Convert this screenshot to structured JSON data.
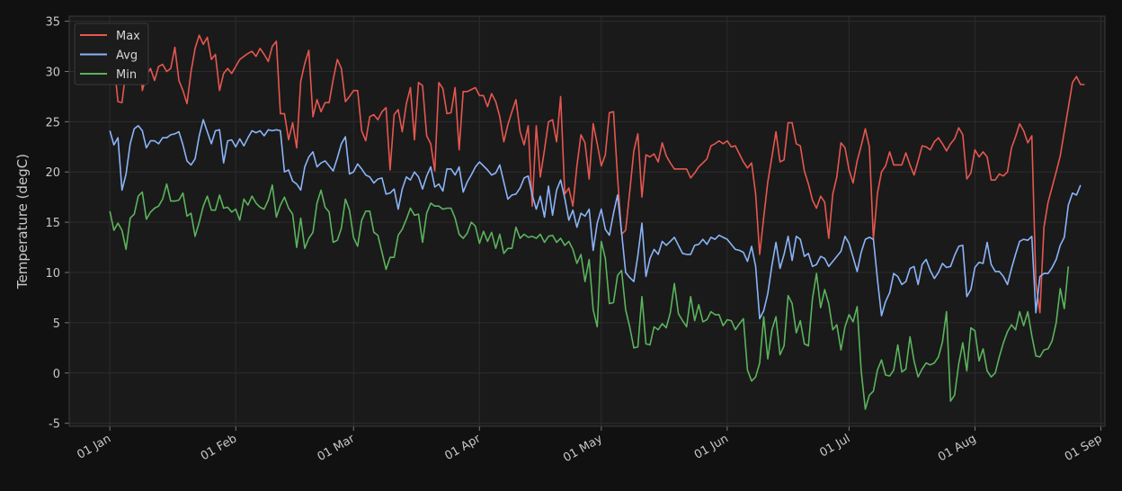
{
  "chart_data": {
    "type": "line",
    "ylabel": "Temperature (degC)",
    "ylim": [
      -5.3,
      35.5
    ],
    "xlim": [
      "2023-12-22",
      "2024-09-02"
    ],
    "y_ticks": [
      -5,
      0,
      5,
      10,
      15,
      20,
      25,
      30,
      35
    ],
    "x_ticks": [
      {
        "date": "2024-01-01",
        "label": "01 Jan"
      },
      {
        "date": "2024-02-01",
        "label": "01 Feb"
      },
      {
        "date": "2024-03-01",
        "label": "01 Mar"
      },
      {
        "date": "2024-04-01",
        "label": "01 Apr"
      },
      {
        "date": "2024-05-01",
        "label": "01 May"
      },
      {
        "date": "2024-06-01",
        "label": "01 Jun"
      },
      {
        "date": "2024-07-01",
        "label": "01 Jul"
      },
      {
        "date": "2024-08-01",
        "label": "01 Aug"
      },
      {
        "date": "2024-09-01",
        "label": "01 Sep"
      }
    ],
    "grid": true,
    "legend_position": "top-left",
    "start_date": "2024-01-01",
    "series": [
      {
        "name": "Max",
        "color": "#e5574f",
        "values": [
          30.2,
          31.0,
          27.0,
          26.9,
          30.2,
          32.5,
          32.0,
          34.1,
          28.1,
          29.6,
          30.3,
          29.1,
          30.5,
          30.7,
          30.0,
          30.3,
          32.4,
          29.1,
          28.1,
          26.8,
          30.0,
          32.3,
          33.6,
          32.7,
          33.4,
          31.2,
          31.7,
          28.1,
          29.8,
          30.3,
          29.8,
          30.5,
          31.2,
          31.5,
          31.8,
          32.0,
          31.5,
          32.3,
          31.7,
          31.0,
          32.5,
          33.0,
          25.8,
          25.8,
          23.2,
          24.9,
          22.4,
          29.0,
          30.8,
          32.1,
          25.5,
          27.2,
          26.0,
          26.9,
          26.9,
          29.2,
          31.2,
          30.3,
          27.0,
          27.5,
          28.1,
          28.1,
          24.1,
          23.1,
          25.5,
          25.7,
          25.2,
          26.0,
          26.4,
          20.2,
          25.7,
          26.2,
          24.0,
          26.8,
          28.4,
          23.2,
          28.9,
          28.6,
          23.6,
          22.8,
          20.1,
          28.9,
          28.3,
          25.8,
          25.9,
          28.4,
          22.2,
          28.0,
          28.0,
          28.2,
          28.4,
          27.6,
          27.6,
          26.5,
          27.8,
          27.0,
          25.5,
          23.0,
          24.7,
          26.0,
          27.2,
          24.0,
          22.7,
          24.6,
          16.6,
          24.6,
          19.5,
          22.2,
          25.0,
          25.2,
          23.0,
          27.5,
          17.8,
          18.4,
          16.6,
          20.6,
          23.7,
          22.9,
          19.3,
          24.8,
          22.8,
          20.6,
          21.7,
          25.9,
          26.0,
          19.5,
          13.8,
          14.2,
          18.0,
          22.1,
          23.8,
          17.5,
          21.7,
          21.5,
          21.8,
          21.0,
          22.9,
          21.6,
          20.9,
          20.3,
          20.3,
          20.3,
          20.3,
          19.4,
          19.9,
          20.5,
          20.9,
          21.3,
          22.6,
          22.8,
          23.1,
          22.8,
          23.1,
          22.5,
          22.6,
          21.8,
          21.0,
          20.4,
          20.9,
          17.8,
          11.8,
          15.5,
          19.0,
          21.5,
          24.0,
          21.0,
          21.2,
          24.9,
          24.9,
          22.8,
          22.6,
          20.1,
          18.8,
          17.2,
          16.4,
          17.6,
          17.0,
          13.4,
          17.8,
          19.5,
          22.9,
          22.4,
          20.2,
          18.9,
          21.1,
          22.6,
          24.3,
          22.5,
          13.3,
          17.9,
          20.0,
          20.6,
          22.0,
          20.7,
          20.7,
          20.7,
          21.9,
          20.7,
          19.7,
          21.1,
          22.6,
          22.5,
          22.2,
          23.0,
          23.4,
          22.8,
          22.1,
          22.8,
          23.3,
          24.4,
          23.7,
          19.3,
          19.9,
          22.2,
          21.5,
          22.0,
          21.5,
          19.2,
          19.2,
          19.8,
          19.6,
          20.0,
          22.4,
          23.5,
          24.8,
          24.1,
          22.9,
          23.6,
          9.0,
          6.0,
          14.5,
          17.0,
          18.5,
          20.0,
          21.6,
          24.0,
          26.4,
          28.9,
          29.5,
          28.7,
          28.7
        ]
      },
      {
        "name": "Avg",
        "color": "#8ab4f8",
        "values": [
          24.1,
          22.7,
          23.4,
          18.2,
          19.8,
          22.8,
          24.3,
          24.6,
          24.1,
          22.4,
          23.1,
          23.1,
          22.8,
          23.4,
          23.4,
          23.7,
          23.8,
          24.0,
          22.7,
          21.1,
          20.7,
          21.3,
          23.6,
          25.2,
          24.0,
          22.8,
          24.1,
          24.2,
          20.9,
          23.1,
          23.2,
          22.5,
          23.3,
          22.6,
          23.4,
          24.1,
          23.9,
          24.1,
          23.6,
          24.2,
          24.1,
          24.2,
          24.1,
          20.0,
          20.2,
          19.1,
          18.8,
          18.2,
          20.5,
          21.5,
          22.0,
          20.5,
          20.9,
          21.1,
          20.6,
          20.1,
          21.4,
          22.8,
          23.5,
          19.8,
          20.0,
          20.8,
          20.3,
          19.7,
          19.5,
          18.9,
          19.3,
          19.4,
          17.8,
          17.9,
          18.3,
          16.3,
          18.3,
          19.5,
          19.2,
          20.0,
          19.5,
          18.3,
          19.6,
          20.5,
          18.5,
          18.8,
          18.1,
          20.3,
          20.3,
          19.7,
          20.5,
          18.0,
          19.0,
          19.7,
          20.5,
          21.0,
          20.6,
          20.2,
          19.7,
          19.9,
          20.7,
          19.0,
          17.3,
          17.7,
          17.8,
          18.4,
          19.4,
          19.6,
          17.7,
          16.3,
          17.6,
          15.5,
          18.6,
          15.7,
          18.2,
          19.2,
          17.4,
          15.2,
          16.2,
          14.5,
          15.9,
          15.6,
          16.3,
          12.2,
          14.9,
          16.3,
          14.3,
          13.7,
          15.9,
          17.7,
          14.0,
          10.0,
          9.5,
          9.1,
          11.7,
          14.9,
          9.6,
          11.4,
          12.3,
          11.8,
          13.1,
          12.7,
          13.1,
          13.5,
          12.7,
          11.9,
          11.8,
          11.8,
          12.7,
          12.8,
          13.3,
          12.8,
          13.5,
          13.3,
          13.7,
          13.5,
          13.3,
          12.8,
          12.3,
          12.2,
          12.0,
          11.1,
          12.6,
          10.6,
          5.4,
          6.2,
          7.9,
          10.7,
          13.0,
          10.4,
          11.8,
          13.6,
          11.2,
          13.6,
          13.3,
          11.6,
          11.9,
          10.6,
          10.8,
          11.6,
          11.4,
          10.6,
          11.1,
          11.6,
          12.1,
          13.6,
          12.9,
          11.5,
          10.1,
          12.0,
          13.3,
          13.5,
          13.3,
          9.3,
          5.7,
          7.1,
          8.0,
          9.9,
          9.6,
          8.8,
          9.1,
          10.4,
          10.6,
          8.8,
          10.8,
          11.3,
          10.2,
          9.4,
          10.0,
          10.9,
          10.5,
          10.6,
          11.7,
          12.6,
          12.7,
          7.6,
          8.3,
          10.5,
          11.0,
          10.9,
          13.0,
          10.8,
          10.1,
          10.1,
          9.6,
          8.8,
          10.4,
          11.8,
          13.1,
          13.3,
          13.2,
          13.6,
          6.0,
          9.6,
          9.9,
          9.9,
          10.5,
          11.3,
          12.7,
          13.5,
          16.7,
          17.9,
          17.7,
          18.7
        ]
      },
      {
        "name": "Min",
        "color": "#5bb35c",
        "values": [
          16.1,
          14.2,
          14.9,
          14.2,
          12.3,
          15.4,
          15.8,
          17.6,
          18.0,
          15.3,
          16.0,
          16.4,
          16.6,
          17.3,
          18.8,
          17.1,
          17.1,
          17.2,
          17.9,
          15.6,
          15.9,
          13.6,
          15.0,
          16.6,
          17.6,
          16.2,
          16.2,
          17.7,
          16.4,
          16.5,
          16.0,
          16.3,
          15.2,
          17.3,
          16.7,
          17.6,
          16.9,
          16.5,
          16.3,
          17.2,
          18.7,
          15.5,
          16.7,
          17.5,
          16.4,
          15.8,
          12.5,
          15.4,
          12.4,
          13.4,
          14.0,
          16.9,
          18.2,
          16.5,
          16.0,
          13.0,
          13.2,
          14.4,
          17.3,
          16.2,
          13.5,
          12.6,
          15.2,
          16.1,
          16.1,
          14.0,
          13.7,
          12.0,
          10.3,
          11.5,
          11.5,
          13.7,
          14.3,
          15.3,
          16.4,
          15.7,
          15.8,
          13.0,
          15.9,
          16.9,
          16.6,
          16.6,
          16.3,
          16.4,
          16.4,
          15.4,
          13.8,
          13.4,
          13.9,
          15.0,
          14.6,
          12.9,
          14.1,
          13.1,
          14.0,
          12.4,
          13.8,
          11.9,
          12.4,
          12.4,
          14.5,
          13.4,
          13.8,
          13.5,
          13.6,
          13.4,
          13.8,
          13.0,
          13.6,
          13.7,
          13.0,
          13.4,
          12.7,
          13.1,
          12.3,
          10.9,
          11.8,
          9.1,
          11.3,
          6.3,
          4.6,
          13.1,
          11.4,
          6.9,
          7.0,
          9.7,
          10.2,
          6.3,
          4.6,
          2.5,
          2.6,
          7.6,
          2.9,
          2.8,
          4.6,
          4.3,
          4.9,
          4.5,
          6.0,
          8.9,
          5.9,
          5.2,
          4.6,
          7.6,
          5.2,
          6.8,
          5.1,
          5.3,
          6.1,
          5.8,
          5.8,
          4.7,
          5.3,
          5.2,
          4.3,
          4.9,
          5.4,
          0.3,
          -0.8,
          -0.4,
          1.0,
          5.6,
          1.4,
          4.3,
          5.6,
          1.8,
          2.7,
          7.7,
          6.9,
          4.0,
          5.2,
          2.9,
          2.7,
          7.4,
          9.9,
          6.5,
          8.3,
          6.9,
          4.3,
          4.8,
          2.3,
          4.6,
          5.8,
          5.1,
          6.6,
          0.2,
          -3.6,
          -2.2,
          -1.8,
          0.3,
          1.3,
          -0.2,
          -0.3,
          0.3,
          2.8,
          0.1,
          0.4,
          3.6,
          1.2,
          -0.4,
          0.4,
          1.0,
          0.8,
          1.0,
          1.6,
          3.1,
          6.1,
          -2.8,
          -2.2,
          0.9,
          3.0,
          0.2,
          4.5,
          4.2,
          1.2,
          2.4,
          0.2,
          -0.4,
          0.0,
          1.6,
          3.0,
          4.1,
          4.8,
          4.3,
          6.1,
          4.7,
          6.1,
          3.7,
          1.7,
          1.6,
          2.3,
          2.4,
          3.2,
          5.0,
          8.4,
          6.4,
          10.6
        ]
      }
    ]
  }
}
